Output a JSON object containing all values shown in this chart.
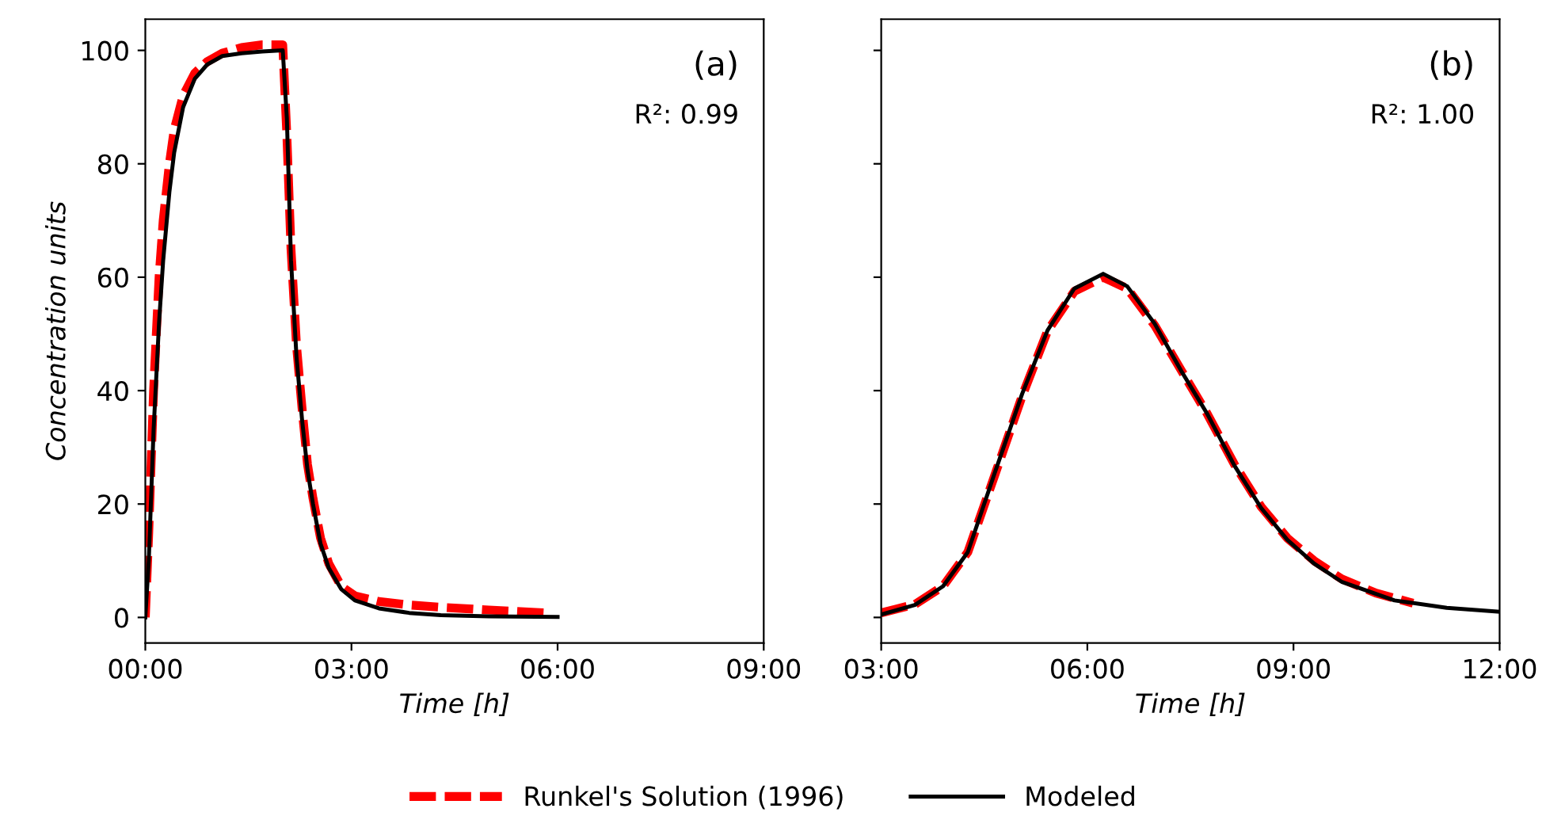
{
  "chart_data": [
    {
      "type": "line",
      "ylabel": "Concentration units",
      "xlabel": "Time [h]",
      "annotations": [
        "(a)",
        "R²: 0.99"
      ],
      "xlim": [
        0,
        9
      ],
      "xticks": [
        {
          "value": 0,
          "label": "00:00"
        },
        {
          "value": 3,
          "label": "03:00"
        },
        {
          "value": 6,
          "label": "06:00"
        },
        {
          "value": 9,
          "label": "09:00"
        }
      ],
      "ylim": [
        -4.5,
        105.5
      ],
      "yticks": [
        0,
        20,
        40,
        60,
        80,
        100
      ],
      "legend": "bottom",
      "grid": false,
      "series": [
        {
          "name": "Runkel's Solution (1996)",
          "color": "#ff0000",
          "line_style": "dashed",
          "x": [
            0,
            0.05,
            0.12,
            0.2,
            0.26,
            0.35,
            0.42,
            0.55,
            0.72,
            0.9,
            1.12,
            1.4,
            1.7,
            2.0,
            2.06,
            2.12,
            2.2,
            2.28,
            2.36,
            2.44,
            2.55,
            2.67,
            2.85,
            3.05,
            3.4,
            3.84,
            4.3,
            5.0,
            5.84
          ],
          "values": [
            0,
            15,
            40,
            60,
            70,
            80,
            86,
            92,
            96,
            98,
            99.5,
            100.5,
            101,
            101,
            85,
            65,
            48,
            37,
            27,
            21,
            14,
            9.5,
            5.5,
            3.8,
            2.8,
            2.2,
            1.8,
            1.3,
            0.8
          ]
        },
        {
          "name": "Modeled",
          "color": "#000000",
          "line_style": "solid",
          "x": [
            0,
            0.05,
            0.12,
            0.2,
            0.26,
            0.35,
            0.42,
            0.55,
            0.72,
            0.9,
            1.12,
            1.4,
            1.7,
            2.0,
            2.06,
            2.12,
            2.2,
            2.28,
            2.36,
            2.44,
            2.55,
            2.67,
            2.85,
            3.05,
            3.4,
            3.84,
            4.3,
            5.0,
            6.0
          ],
          "values": [
            0,
            10,
            33,
            52,
            63,
            75,
            82,
            90,
            95,
            97.5,
            99,
            99.5,
            99.8,
            100,
            88,
            63,
            46,
            35,
            26,
            20,
            13,
            8.7,
            5,
            3,
            1.6,
            0.8,
            0.4,
            0.2,
            0.1
          ]
        }
      ]
    },
    {
      "type": "line",
      "xlabel": "Time [h]",
      "annotations": [
        "(b)",
        "R²: 1.00"
      ],
      "xlim": [
        3,
        12
      ],
      "xticks": [
        {
          "value": 3,
          "label": "03:00"
        },
        {
          "value": 6,
          "label": "06:00"
        },
        {
          "value": 9,
          "label": "09:00"
        },
        {
          "value": 12,
          "label": "12:00"
        }
      ],
      "ylim": [
        -4.5,
        105.5
      ],
      "yticks": [
        0,
        20,
        40,
        60,
        80,
        100
      ],
      "tick_labels": "x",
      "grid": false,
      "series": [
        {
          "name": "Runkel's Solution (1996)",
          "color": "#ff0000",
          "line_style": "dashed",
          "x": [
            3.0,
            3.49,
            3.9,
            4.26,
            4.65,
            5.05,
            5.42,
            5.81,
            6.23,
            6.58,
            6.98,
            7.37,
            7.74,
            8.14,
            8.53,
            8.91,
            9.3,
            9.7,
            10.2,
            10.74
          ],
          "values": [
            0.8,
            2.3,
            5.5,
            11.5,
            25,
            39,
            50.5,
            57.5,
            60,
            58,
            51.5,
            43.5,
            36,
            27,
            19.5,
            14,
            10,
            6.8,
            4.3,
            2.5
          ]
        },
        {
          "name": "Modeled",
          "color": "#000000",
          "line_style": "solid",
          "x": [
            3.0,
            3.49,
            3.9,
            4.26,
            4.65,
            5.05,
            5.42,
            5.81,
            6.23,
            6.58,
            6.98,
            7.37,
            7.74,
            8.14,
            8.53,
            8.91,
            9.3,
            9.7,
            10.47,
            11.23,
            12.0
          ],
          "values": [
            0.5,
            2.2,
            5.5,
            11.5,
            25.4,
            39.4,
            50.6,
            58,
            60.6,
            58.4,
            51.8,
            43.4,
            36,
            26.8,
            19.3,
            13.7,
            9.5,
            6.3,
            3.0,
            1.7,
            1.0
          ]
        }
      ]
    }
  ]
}
